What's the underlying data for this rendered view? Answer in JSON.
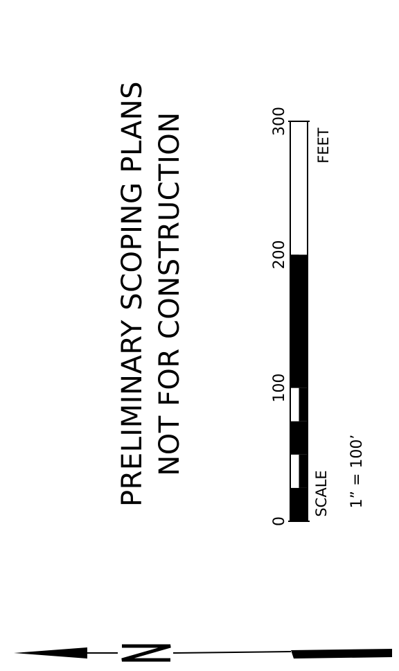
{
  "notice": {
    "line1": "PRELIMINARY SCOPING PLANS",
    "line2": "NOT FOR CONSTRUCTION"
  },
  "scale_bar": {
    "unit_label": "FEET",
    "scale_label": "SCALE",
    "ratio_label": "1”  =  100’",
    "ticks": [
      "0",
      "100",
      "200",
      "300"
    ],
    "max_feet": 300,
    "segments": [
      {
        "from": 0,
        "to": 25,
        "fill": "black"
      },
      {
        "from": 25,
        "to": 50,
        "fill": "white"
      },
      {
        "from": 50,
        "to": 75,
        "fill": "black"
      },
      {
        "from": 75,
        "to": 100,
        "fill": "white"
      },
      {
        "from": 100,
        "to": 200,
        "fill": "black"
      },
      {
        "from": 200,
        "to": 300,
        "fill": "white"
      }
    ]
  },
  "north_arrow": {
    "label": "N",
    "direction": "left"
  }
}
